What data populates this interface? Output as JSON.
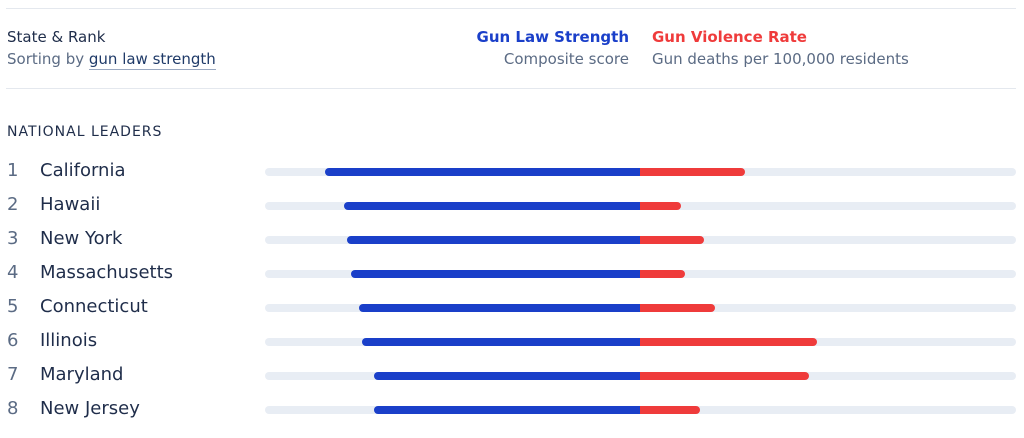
{
  "header": {
    "title": "State & Rank",
    "sort_prefix": "Sorting by ",
    "sort_link": "gun law strength"
  },
  "legend": {
    "law_label": "Gun Law Strength",
    "law_sub": "Composite score",
    "violence_label": "Gun Violence Rate",
    "violence_sub": "Gun deaths per 100,000 residents"
  },
  "section_title": "NATIONAL LEADERS",
  "colors": {
    "law": "#1a3fc9",
    "violence": "#ef3b3b",
    "track": "#e8edf4",
    "text_primary": "#1f2d4a",
    "text_secondary": "#5b6b84"
  },
  "chart_data": {
    "type": "bar",
    "categories": [
      "California",
      "Hawaii",
      "New York",
      "Massachusetts",
      "Connecticut",
      "Illinois",
      "Maryland",
      "New Jersey"
    ],
    "ranks": [
      "1",
      "2",
      "3",
      "4",
      "5",
      "6",
      "7",
      "8"
    ],
    "series": [
      {
        "name": "Gun Law Strength",
        "values": [
          0.84,
          0.79,
          0.78,
          0.77,
          0.75,
          0.74,
          0.71,
          0.71
        ]
      },
      {
        "name": "Gun Violence Rate",
        "values": [
          0.28,
          0.11,
          0.17,
          0.12,
          0.2,
          0.47,
          0.45,
          0.16
        ]
      }
    ],
    "title": "",
    "xlabel": "",
    "ylabel": "",
    "grid": false
  }
}
